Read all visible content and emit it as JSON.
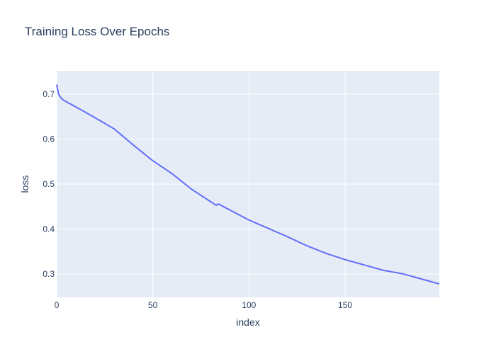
{
  "chart_data": {
    "type": "line",
    "title": "Training Loss Over Epochs",
    "xlabel": "index",
    "ylabel": "loss",
    "xlim": [
      0,
      199
    ],
    "ylim": [
      0.248,
      0.752
    ],
    "x_ticks": [
      0,
      50,
      100,
      150
    ],
    "y_ticks": [
      0.3,
      0.4,
      0.5,
      0.6,
      0.7
    ],
    "y_tick_labels": [
      "0.3",
      "0.4",
      "0.5",
      "0.6",
      "0.7"
    ],
    "grid": true,
    "colors": {
      "plot_background": "#e5ecf6",
      "grid": "#ffffff",
      "line": "#636efa",
      "text": "#2a3f5f"
    },
    "series": [
      {
        "x_start": 0,
        "x_step": 1,
        "values": [
          0.7213,
          0.7002,
          0.6929,
          0.6885,
          0.6856,
          0.6832,
          0.6808,
          0.6785,
          0.6762,
          0.6739,
          0.6716,
          0.6692,
          0.6668,
          0.6644,
          0.662,
          0.6596,
          0.6572,
          0.6548,
          0.6524,
          0.65,
          0.6475,
          0.645,
          0.6425,
          0.64,
          0.6375,
          0.635,
          0.6325,
          0.63,
          0.6275,
          0.625,
          0.6225,
          0.6188,
          0.6152,
          0.6116,
          0.608,
          0.6044,
          0.6008,
          0.5972,
          0.5936,
          0.59,
          0.5864,
          0.5829,
          0.5794,
          0.5759,
          0.5725,
          0.569,
          0.5656,
          0.5622,
          0.5588,
          0.5554,
          0.552,
          0.5491,
          0.5462,
          0.5434,
          0.5405,
          0.5376,
          0.5347,
          0.5318,
          0.529,
          0.5261,
          0.5232,
          0.5198,
          0.5164,
          0.513,
          0.5095,
          0.5061,
          0.5027,
          0.4993,
          0.4959,
          0.4925,
          0.489,
          0.4862,
          0.4834,
          0.4806,
          0.4778,
          0.475,
          0.4722,
          0.4694,
          0.4666,
          0.4638,
          0.461,
          0.4582,
          0.4554,
          0.4526,
          0.456,
          0.4538,
          0.4515,
          0.4493,
          0.447,
          0.4448,
          0.4425,
          0.4403,
          0.438,
          0.4358,
          0.4335,
          0.4313,
          0.429,
          0.4268,
          0.4245,
          0.4223,
          0.42,
          0.4182,
          0.4163,
          0.4145,
          0.4126,
          0.4108,
          0.4089,
          0.4071,
          0.4052,
          0.4034,
          0.4015,
          0.3997,
          0.3978,
          0.396,
          0.3941,
          0.3923,
          0.3904,
          0.3886,
          0.3867,
          0.3849,
          0.383,
          0.381,
          0.379,
          0.377,
          0.375,
          0.373,
          0.371,
          0.369,
          0.367,
          0.365,
          0.363,
          0.3613,
          0.3596,
          0.3579,
          0.3562,
          0.3545,
          0.3528,
          0.3511,
          0.3494,
          0.3477,
          0.346,
          0.3446,
          0.3432,
          0.3418,
          0.3404,
          0.339,
          0.3376,
          0.3362,
          0.3348,
          0.3334,
          0.332,
          0.3308,
          0.3296,
          0.3284,
          0.3272,
          0.326,
          0.3248,
          0.3236,
          0.3224,
          0.3212,
          0.32,
          0.3188,
          0.3176,
          0.3164,
          0.3152,
          0.314,
          0.3128,
          0.3116,
          0.3104,
          0.3092,
          0.308,
          0.3072,
          0.3065,
          0.3058,
          0.305,
          0.3042,
          0.3035,
          0.3028,
          0.302,
          0.3012,
          0.3005,
          0.2993,
          0.2981,
          0.2969,
          0.2957,
          0.2945,
          0.2933,
          0.2921,
          0.2909,
          0.2897,
          0.2885,
          0.2873,
          0.2862,
          0.285,
          0.2838,
          0.2826,
          0.2814,
          0.2802,
          0.279,
          0.2779
        ]
      }
    ]
  }
}
